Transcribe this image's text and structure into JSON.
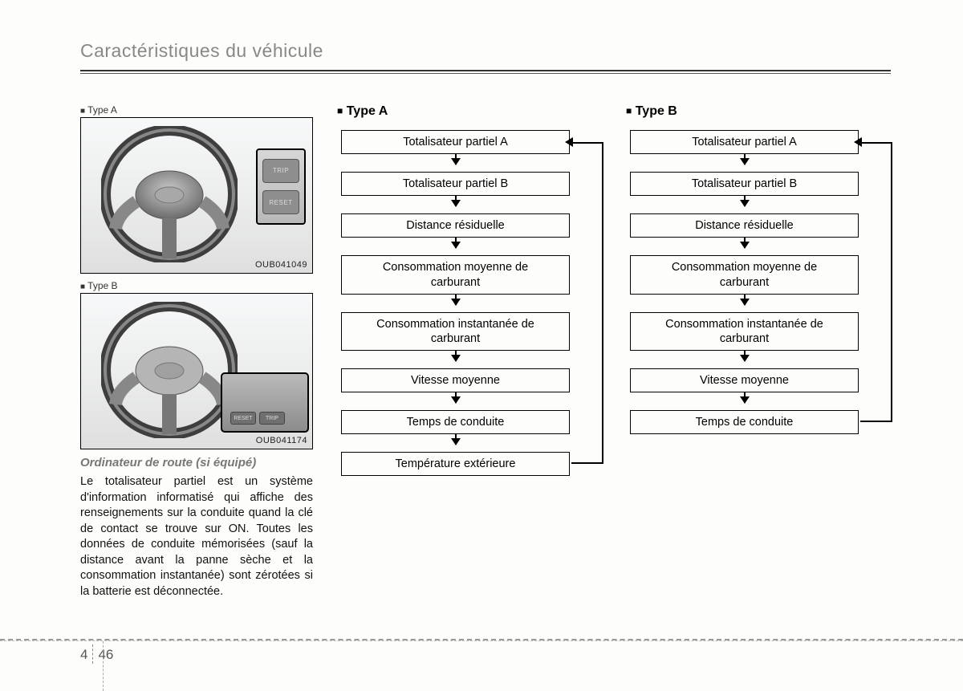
{
  "header": {
    "title": "Caractéristiques du véhicule"
  },
  "left": {
    "labelA": "Type A",
    "labelB": "Type B",
    "codeA": "OUB041049",
    "codeB": "OUB041174",
    "btnTrip": "TRIP",
    "btnReset": "RESET",
    "subhead": "Ordinateur de route (si équipé)",
    "body": "Le totalisateur partiel est un système d'information informatisé qui affiche des renseignements sur la conduite quand la clé de contact se trouve sur ON. Toutes les données de conduite mémorisées (sauf la distance avant la panne sèche et la consommation instantanée) sont zérotées si la batterie est déconnectée."
  },
  "flowA": {
    "title": "Type A",
    "boxes": [
      "Totalisateur partiel A",
      "Totalisateur partiel B",
      "Distance résiduelle",
      "Consommation moyenne de\ncarburant",
      "Consommation instantanée de\ncarburant",
      "Vitesse moyenne",
      "Temps de conduite",
      "Température extérieure"
    ]
  },
  "flowB": {
    "title": "Type B",
    "boxes": [
      "Totalisateur partiel A",
      "Totalisateur partiel B",
      "Distance résiduelle",
      "Consommation moyenne de\ncarburant",
      "Consommation instantanée de\ncarburant",
      "Vitesse moyenne",
      "Temps de conduite"
    ]
  },
  "footer": {
    "chapter": "4",
    "page": "46"
  },
  "style": {
    "box_border": "#000000",
    "bg": "#fdfdfb",
    "header_color": "#888888",
    "arrow_len": 13
  }
}
